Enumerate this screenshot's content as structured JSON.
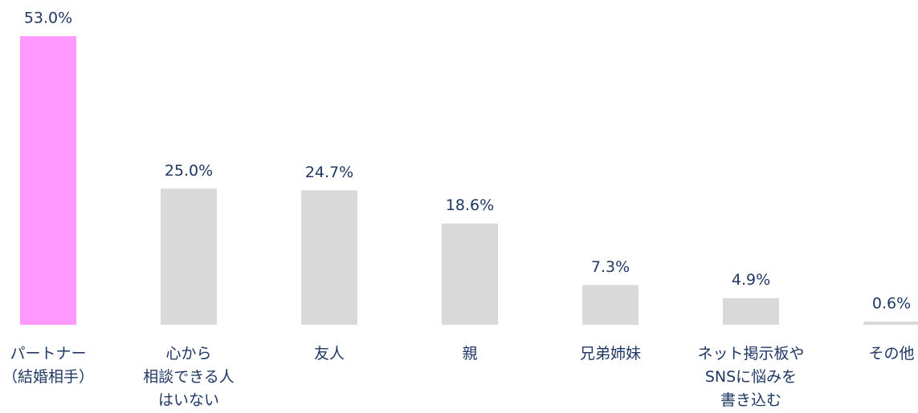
{
  "chart_data": {
    "type": "bar",
    "categories": [
      [
        "パートナー",
        "（結婚相手）"
      ],
      [
        "心から",
        "相談できる人",
        "はいない"
      ],
      [
        "友人"
      ],
      [
        "親"
      ],
      [
        "兄弟姉妹"
      ],
      [
        "ネット掲示板や",
        "SNSに悩みを",
        "書き込む"
      ],
      [
        "その他"
      ]
    ],
    "values": [
      53.0,
      25.0,
      24.7,
      18.6,
      7.3,
      4.9,
      0.6
    ],
    "value_labels": [
      "53.0%",
      "25.0%",
      "24.7%",
      "18.6%",
      "7.3%",
      "4.9%",
      "0.6%"
    ],
    "colors": [
      "#ff99ff",
      "#d9d9d9",
      "#d9d9d9",
      "#d9d9d9",
      "#d9d9d9",
      "#d9d9d9",
      "#d9d9d9"
    ]
  }
}
